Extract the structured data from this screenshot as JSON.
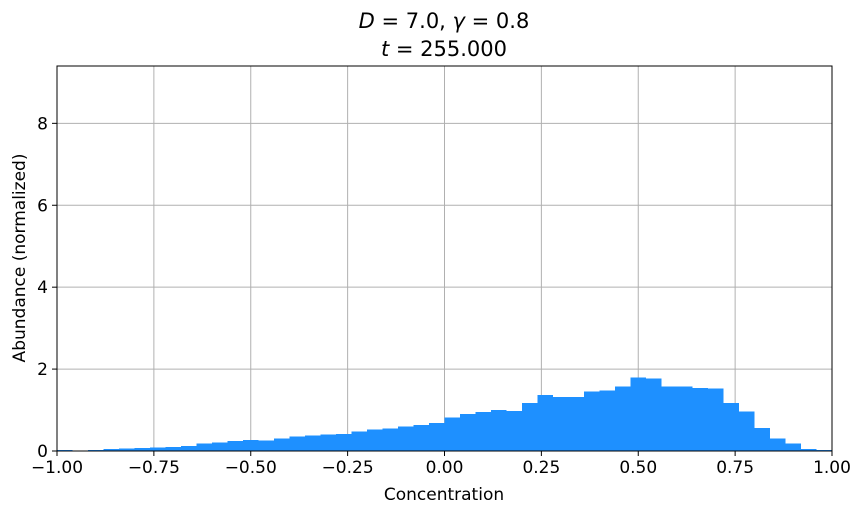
{
  "chart_data": {
    "type": "bar",
    "title": {
      "line1": {
        "var_D": "D",
        "eq_D": " = 7.0, ",
        "var_gamma": "γ",
        "eq_gamma": " = 0.8"
      },
      "line2": {
        "var_t": "t",
        "eq_t": " = 255.000"
      }
    },
    "xlabel": "Concentration",
    "ylabel": "Abundance (normalized)",
    "xlim": [
      -1.0,
      1.0
    ],
    "ylim": [
      0,
      9.4
    ],
    "xticks": [
      -1.0,
      -0.75,
      -0.5,
      -0.25,
      0.0,
      0.25,
      0.5,
      0.75,
      1.0
    ],
    "xtick_labels": [
      "−1.00",
      "−0.75",
      "−0.50",
      "−0.25",
      "0.00",
      "0.25",
      "0.50",
      "0.75",
      "1.00"
    ],
    "yticks": [
      0,
      2,
      4,
      6,
      8
    ],
    "ytick_labels": [
      "0",
      "2",
      "4",
      "6",
      "8"
    ],
    "grid": true,
    "bar_color": "#1e90ff",
    "bin_edges": [
      -1.0,
      -0.96,
      -0.92,
      -0.88,
      -0.84,
      -0.8,
      -0.76,
      -0.72,
      -0.68,
      -0.64,
      -0.6,
      -0.56,
      -0.52,
      -0.48,
      -0.44,
      -0.4,
      -0.36,
      -0.32,
      -0.28,
      -0.24,
      -0.2,
      -0.16,
      -0.12,
      -0.08,
      -0.04,
      0.0,
      0.04,
      0.08,
      0.12,
      0.16,
      0.2,
      0.24,
      0.28,
      0.32,
      0.36,
      0.4,
      0.44,
      0.48,
      0.52,
      0.56,
      0.6,
      0.64,
      0.68,
      0.72,
      0.76,
      0.8,
      0.84,
      0.88,
      0.92,
      0.96,
      1.0
    ],
    "values": [
      0.02,
      0.01,
      0.03,
      0.05,
      0.06,
      0.07,
      0.09,
      0.1,
      0.12,
      0.18,
      0.21,
      0.24,
      0.27,
      0.26,
      0.31,
      0.35,
      0.38,
      0.4,
      0.42,
      0.48,
      0.52,
      0.55,
      0.6,
      0.63,
      0.68,
      0.82,
      0.9,
      0.95,
      1.0,
      0.98,
      1.17,
      1.37,
      1.32,
      1.32,
      1.45,
      1.48,
      1.58,
      1.8,
      1.77,
      1.58,
      1.57,
      1.54,
      1.52,
      1.17,
      0.96,
      0.56,
      0.3,
      0.18,
      0.05,
      0.02
    ]
  }
}
